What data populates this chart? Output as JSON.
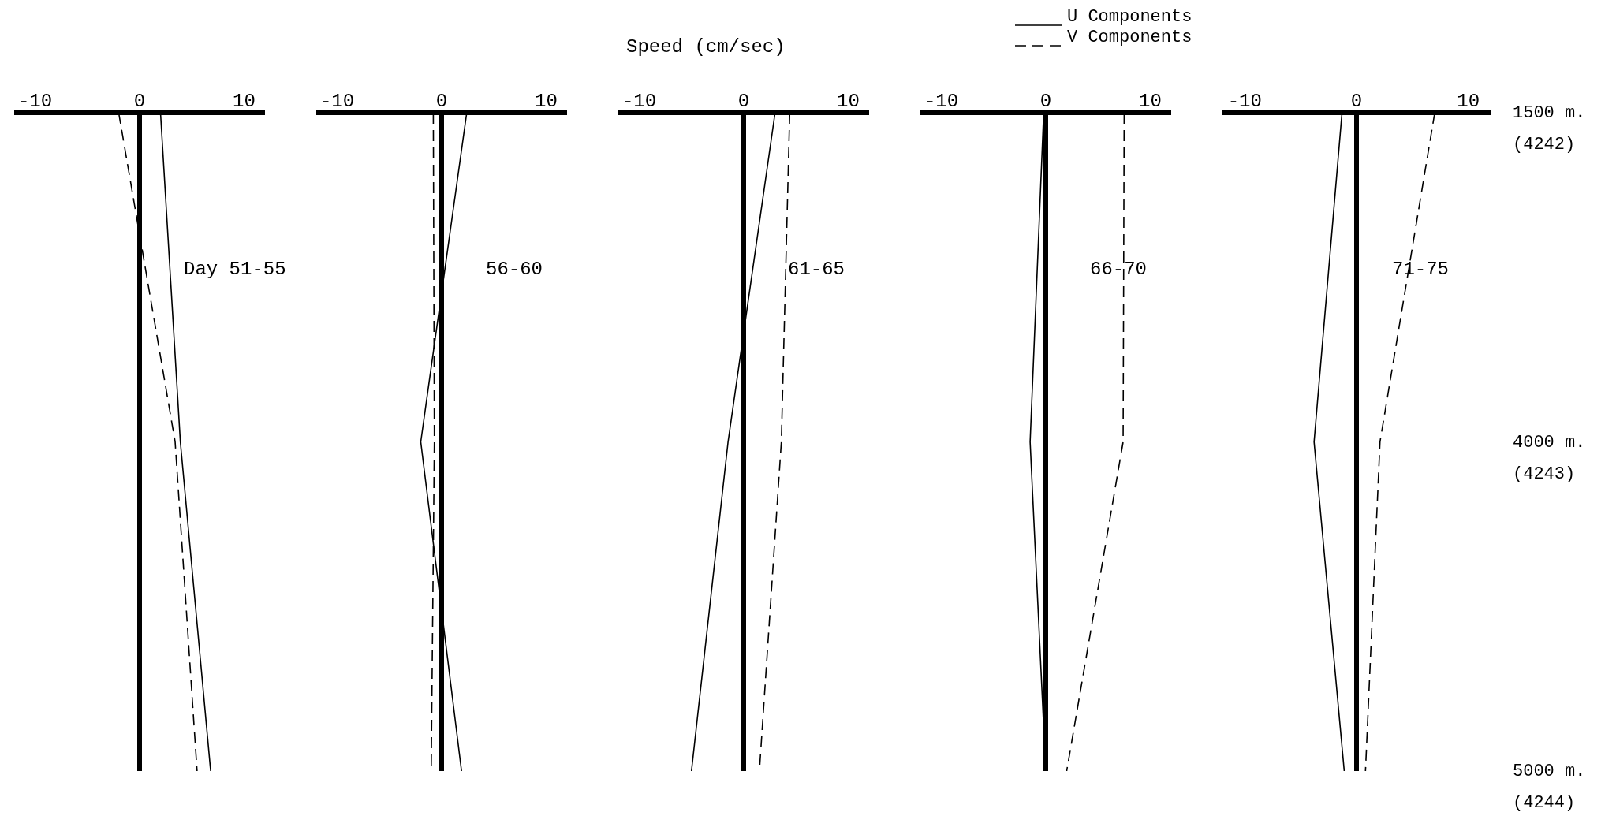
{
  "chart_data": [
    {
      "type": "line",
      "orientation": "horizontal",
      "categories": [
        null,
        null,
        null
      ],
      "xlim": [
        -12,
        12
      ],
      "xticks": [
        -10,
        0,
        10
      ],
      "tick_labels": "x",
      "marker": "none",
      "annotations": [
        "Day 51-55"
      ],
      "ref_lines": [
        {
          "axis": "x",
          "value": 0
        }
      ],
      "series": [
        {
          "color": "#000000",
          "line_style": "solid",
          "values": [
            2.0,
            3.9,
            6.8
          ]
        },
        {
          "color": "#000000",
          "line_style": "dashed",
          "values": [
            -2.0,
            3.4,
            5.5
          ]
        }
      ]
    },
    {
      "type": "line",
      "orientation": "horizontal",
      "categories": [
        null,
        null,
        null
      ],
      "xlim": [
        -12,
        12
      ],
      "xticks": [
        -10,
        0,
        10
      ],
      "tick_labels": "x",
      "marker": "none",
      "annotations": [
        "56-60"
      ],
      "ref_lines": [
        {
          "axis": "x",
          "value": 0
        }
      ],
      "series": [
        {
          "color": "#000000",
          "line_style": "solid",
          "values": [
            2.4,
            -2.0,
            1.9
          ]
        },
        {
          "color": "#000000",
          "line_style": "dashed",
          "values": [
            -0.8,
            -0.7,
            -1.0
          ]
        }
      ]
    },
    {
      "type": "line",
      "orientation": "horizontal",
      "categories": [
        null,
        null,
        null
      ],
      "xlabel": "Speed (cm/sec)",
      "xlim": [
        -12,
        12
      ],
      "xticks": [
        -10,
        0,
        10
      ],
      "tick_labels": "x",
      "marker": "none",
      "annotations": [
        "61-65"
      ],
      "ref_lines": [
        {
          "axis": "x",
          "value": 0
        }
      ],
      "series": [
        {
          "color": "#000000",
          "line_style": "solid",
          "values": [
            3.0,
            -1.5,
            -5.0
          ]
        },
        {
          "color": "#000000",
          "line_style": "dashed",
          "values": [
            4.4,
            3.6,
            1.5
          ]
        }
      ]
    },
    {
      "type": "line",
      "orientation": "horizontal",
      "categories": [
        null,
        null,
        null
      ],
      "xlim": [
        -12,
        12
      ],
      "xticks": [
        -10,
        0,
        10
      ],
      "tick_labels": "x",
      "marker": "none",
      "legend": "top",
      "annotations": [
        "66-70"
      ],
      "ref_lines": [
        {
          "axis": "x",
          "value": 0
        }
      ],
      "series": [
        {
          "name": "U Components",
          "color": "#000000",
          "line_style": "solid",
          "values": [
            -0.2,
            -1.5,
            0
          ]
        },
        {
          "name": "V Components",
          "color": "#000000",
          "line_style": "dashed",
          "values": [
            7.5,
            7.4,
            2.0
          ]
        }
      ]
    },
    {
      "type": "line",
      "orientation": "horizontal",
      "categories": [
        "1500 m. (4242)",
        "4000 m. (4243)",
        "5000 m. (4244)"
      ],
      "xlim": [
        -12,
        12
      ],
      "xticks": [
        -10,
        0,
        10
      ],
      "marker": "none",
      "annotations": [
        "71-75"
      ],
      "ref_lines": [
        {
          "axis": "x",
          "value": 0
        }
      ],
      "series": [
        {
          "color": "#000000",
          "line_style": "solid",
          "values": [
            -1.3,
            -3.8,
            -1.1
          ]
        },
        {
          "color": "#000000",
          "line_style": "dashed",
          "values": [
            7.0,
            2.1,
            0.8
          ]
        }
      ]
    }
  ]
}
